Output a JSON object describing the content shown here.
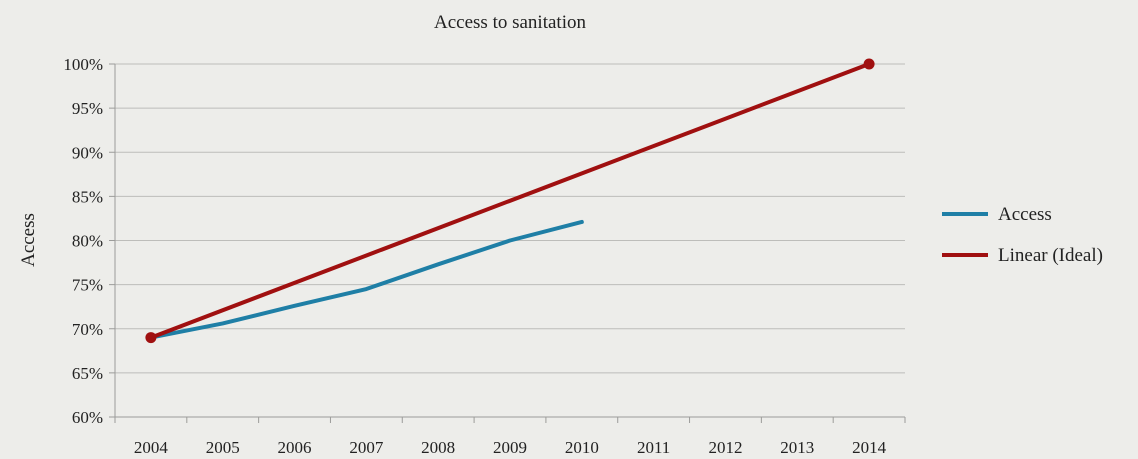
{
  "chart_data": {
    "type": "line",
    "title": "Access to sanitation",
    "ylabel": "Access",
    "xlabel": "",
    "categories": [
      "2004",
      "2005",
      "2006",
      "2007",
      "2008",
      "2009",
      "2010",
      "2011",
      "2012",
      "2013",
      "2014"
    ],
    "ylim": [
      0.6,
      1.0
    ],
    "yticks": [
      "60%",
      "65%",
      "70%",
      "75%",
      "80%",
      "85%",
      "90%",
      "95%",
      "100%"
    ],
    "grid": true,
    "legend_position": "right",
    "series": [
      {
        "name": "Access",
        "color": "#1f7fa6",
        "x": [
          "2004",
          "2005",
          "2006",
          "2007",
          "2008",
          "2009",
          "2010"
        ],
        "values": [
          0.69,
          0.706,
          0.726,
          0.745,
          0.773,
          0.8,
          0.821
        ],
        "markers": false
      },
      {
        "name": "Linear (Ideal)",
        "color": "#a01010",
        "x": [
          "2004",
          "2014"
        ],
        "values": [
          0.69,
          1.0
        ],
        "markers": true
      }
    ]
  }
}
